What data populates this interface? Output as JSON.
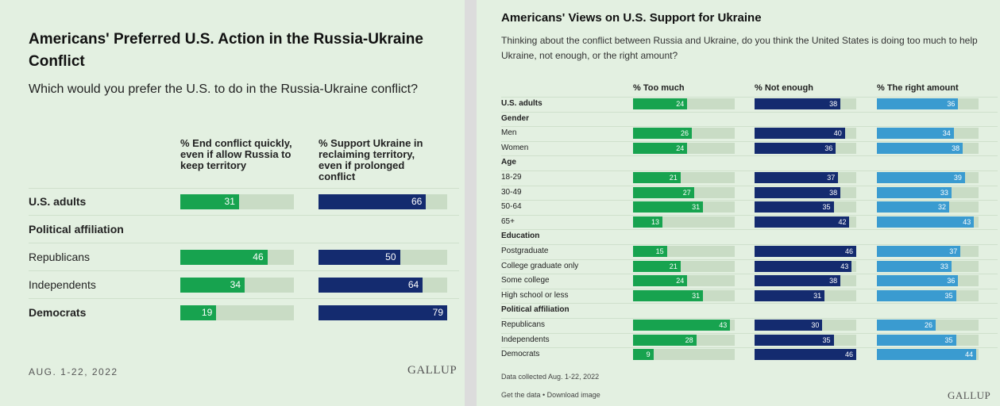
{
  "colors": {
    "green": "#17a34f",
    "navy": "#142b6f",
    "lightblue": "#3a9bd0",
    "track": "#c9dcc5",
    "panel": "#e3f0e1"
  },
  "left": {
    "title": "Americans' Preferred U.S. Action in the Russia-Ukraine Conflict",
    "subtitle": "Which would you prefer the U.S. to do in the Russia-Ukraine conflict?",
    "footer_date": "AUG. 1-22, 2022",
    "logo": "GALLUP"
  },
  "right": {
    "title": "Americans' Views on U.S. Support for Ukraine",
    "subtitle": "Thinking about the conflict between Russia and Ukraine, do you think the United States is doing too much to help Ukraine, not enough, or the right amount?",
    "note": "Data collected Aug. 1-22, 2022",
    "links": "Get the data • Download image",
    "logo": "GALLUP"
  },
  "chart_data": [
    {
      "type": "bar",
      "title": "Americans' Preferred U.S. Action in the Russia-Ukraine Conflict",
      "xlim": [
        0,
        100
      ],
      "series": [
        {
          "name": "% End conflict quickly, even if allow Russia to keep territory",
          "color": "#17a34f"
        },
        {
          "name": "% Support Ukraine in reclaiming territory, even if prolonged conflict",
          "color": "#142b6f"
        }
      ],
      "rows": [
        {
          "label": "U.S. adults",
          "bold": true,
          "values": [
            31,
            66
          ]
        },
        {
          "label": "Political affiliation",
          "bold": true,
          "header": true
        },
        {
          "label": "Republicans",
          "values": [
            46,
            50
          ]
        },
        {
          "label": "Independents",
          "values": [
            34,
            64
          ]
        },
        {
          "label": "Democrats",
          "bold": true,
          "values": [
            19,
            79
          ]
        }
      ]
    },
    {
      "type": "bar",
      "title": "Americans' Views on U.S. Support for Ukraine",
      "xlim": [
        0,
        45
      ],
      "series": [
        {
          "name": "% Too much",
          "color": "#17a34f"
        },
        {
          "name": "% Not enough",
          "color": "#142b6f"
        },
        {
          "name": "% The right amount",
          "color": "#3a9bd0"
        }
      ],
      "rows": [
        {
          "label": "U.S. adults",
          "bold": true,
          "values": [
            24,
            38,
            36
          ]
        },
        {
          "label": "Gender",
          "bold": true,
          "header": true
        },
        {
          "label": "Men",
          "values": [
            26,
            40,
            34
          ]
        },
        {
          "label": "Women",
          "values": [
            24,
            36,
            38
          ]
        },
        {
          "label": "Age",
          "bold": true,
          "header": true
        },
        {
          "label": "18-29",
          "values": [
            21,
            37,
            39
          ]
        },
        {
          "label": "30-49",
          "values": [
            27,
            38,
            33
          ]
        },
        {
          "label": "50-64",
          "values": [
            31,
            35,
            32
          ]
        },
        {
          "label": "65+",
          "values": [
            13,
            42,
            43
          ]
        },
        {
          "label": "Education",
          "bold": true,
          "header": true
        },
        {
          "label": "Postgraduate",
          "values": [
            15,
            46,
            37
          ]
        },
        {
          "label": "College graduate only",
          "values": [
            21,
            43,
            33
          ]
        },
        {
          "label": "Some college",
          "values": [
            24,
            38,
            36
          ]
        },
        {
          "label": "High school or less",
          "values": [
            31,
            31,
            35
          ]
        },
        {
          "label": "Political affiliation",
          "bold": true,
          "header": true
        },
        {
          "label": "Republicans",
          "values": [
            43,
            30,
            26
          ]
        },
        {
          "label": "Independents",
          "values": [
            28,
            35,
            35
          ]
        },
        {
          "label": "Democrats",
          "values": [
            9,
            46,
            44
          ]
        }
      ]
    }
  ]
}
